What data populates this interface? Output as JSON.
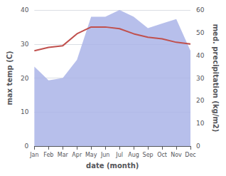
{
  "chart_data": {
    "type": "line",
    "xlabel": "date (month)",
    "ylabel": "max temp (C)",
    "y2label": "med. precipitation (kg/m2)",
    "categories": [
      "Jan",
      "Feb",
      "Mar",
      "Apr",
      "May",
      "Jun",
      "Jul",
      "Aug",
      "Sep",
      "Oct",
      "Nov",
      "Dec"
    ],
    "series": [
      {
        "type": "area",
        "axis": "y2",
        "color": "#aab4e8",
        "values": [
          35,
          29,
          30,
          38,
          57,
          57,
          60,
          57,
          52,
          54,
          56,
          42
        ]
      },
      {
        "type": "line",
        "color": "#c0504d",
        "values": [
          28,
          29,
          29.5,
          33,
          35,
          35,
          34.5,
          33,
          32,
          31.5,
          30.5,
          30
        ]
      }
    ],
    "ylim": [
      0,
      40
    ],
    "yticks": [
      0,
      10,
      20,
      30,
      40
    ],
    "y2lim": [
      0,
      60
    ],
    "y2ticks": [
      0,
      10,
      20,
      30,
      40,
      50,
      60
    ],
    "grid": true
  }
}
